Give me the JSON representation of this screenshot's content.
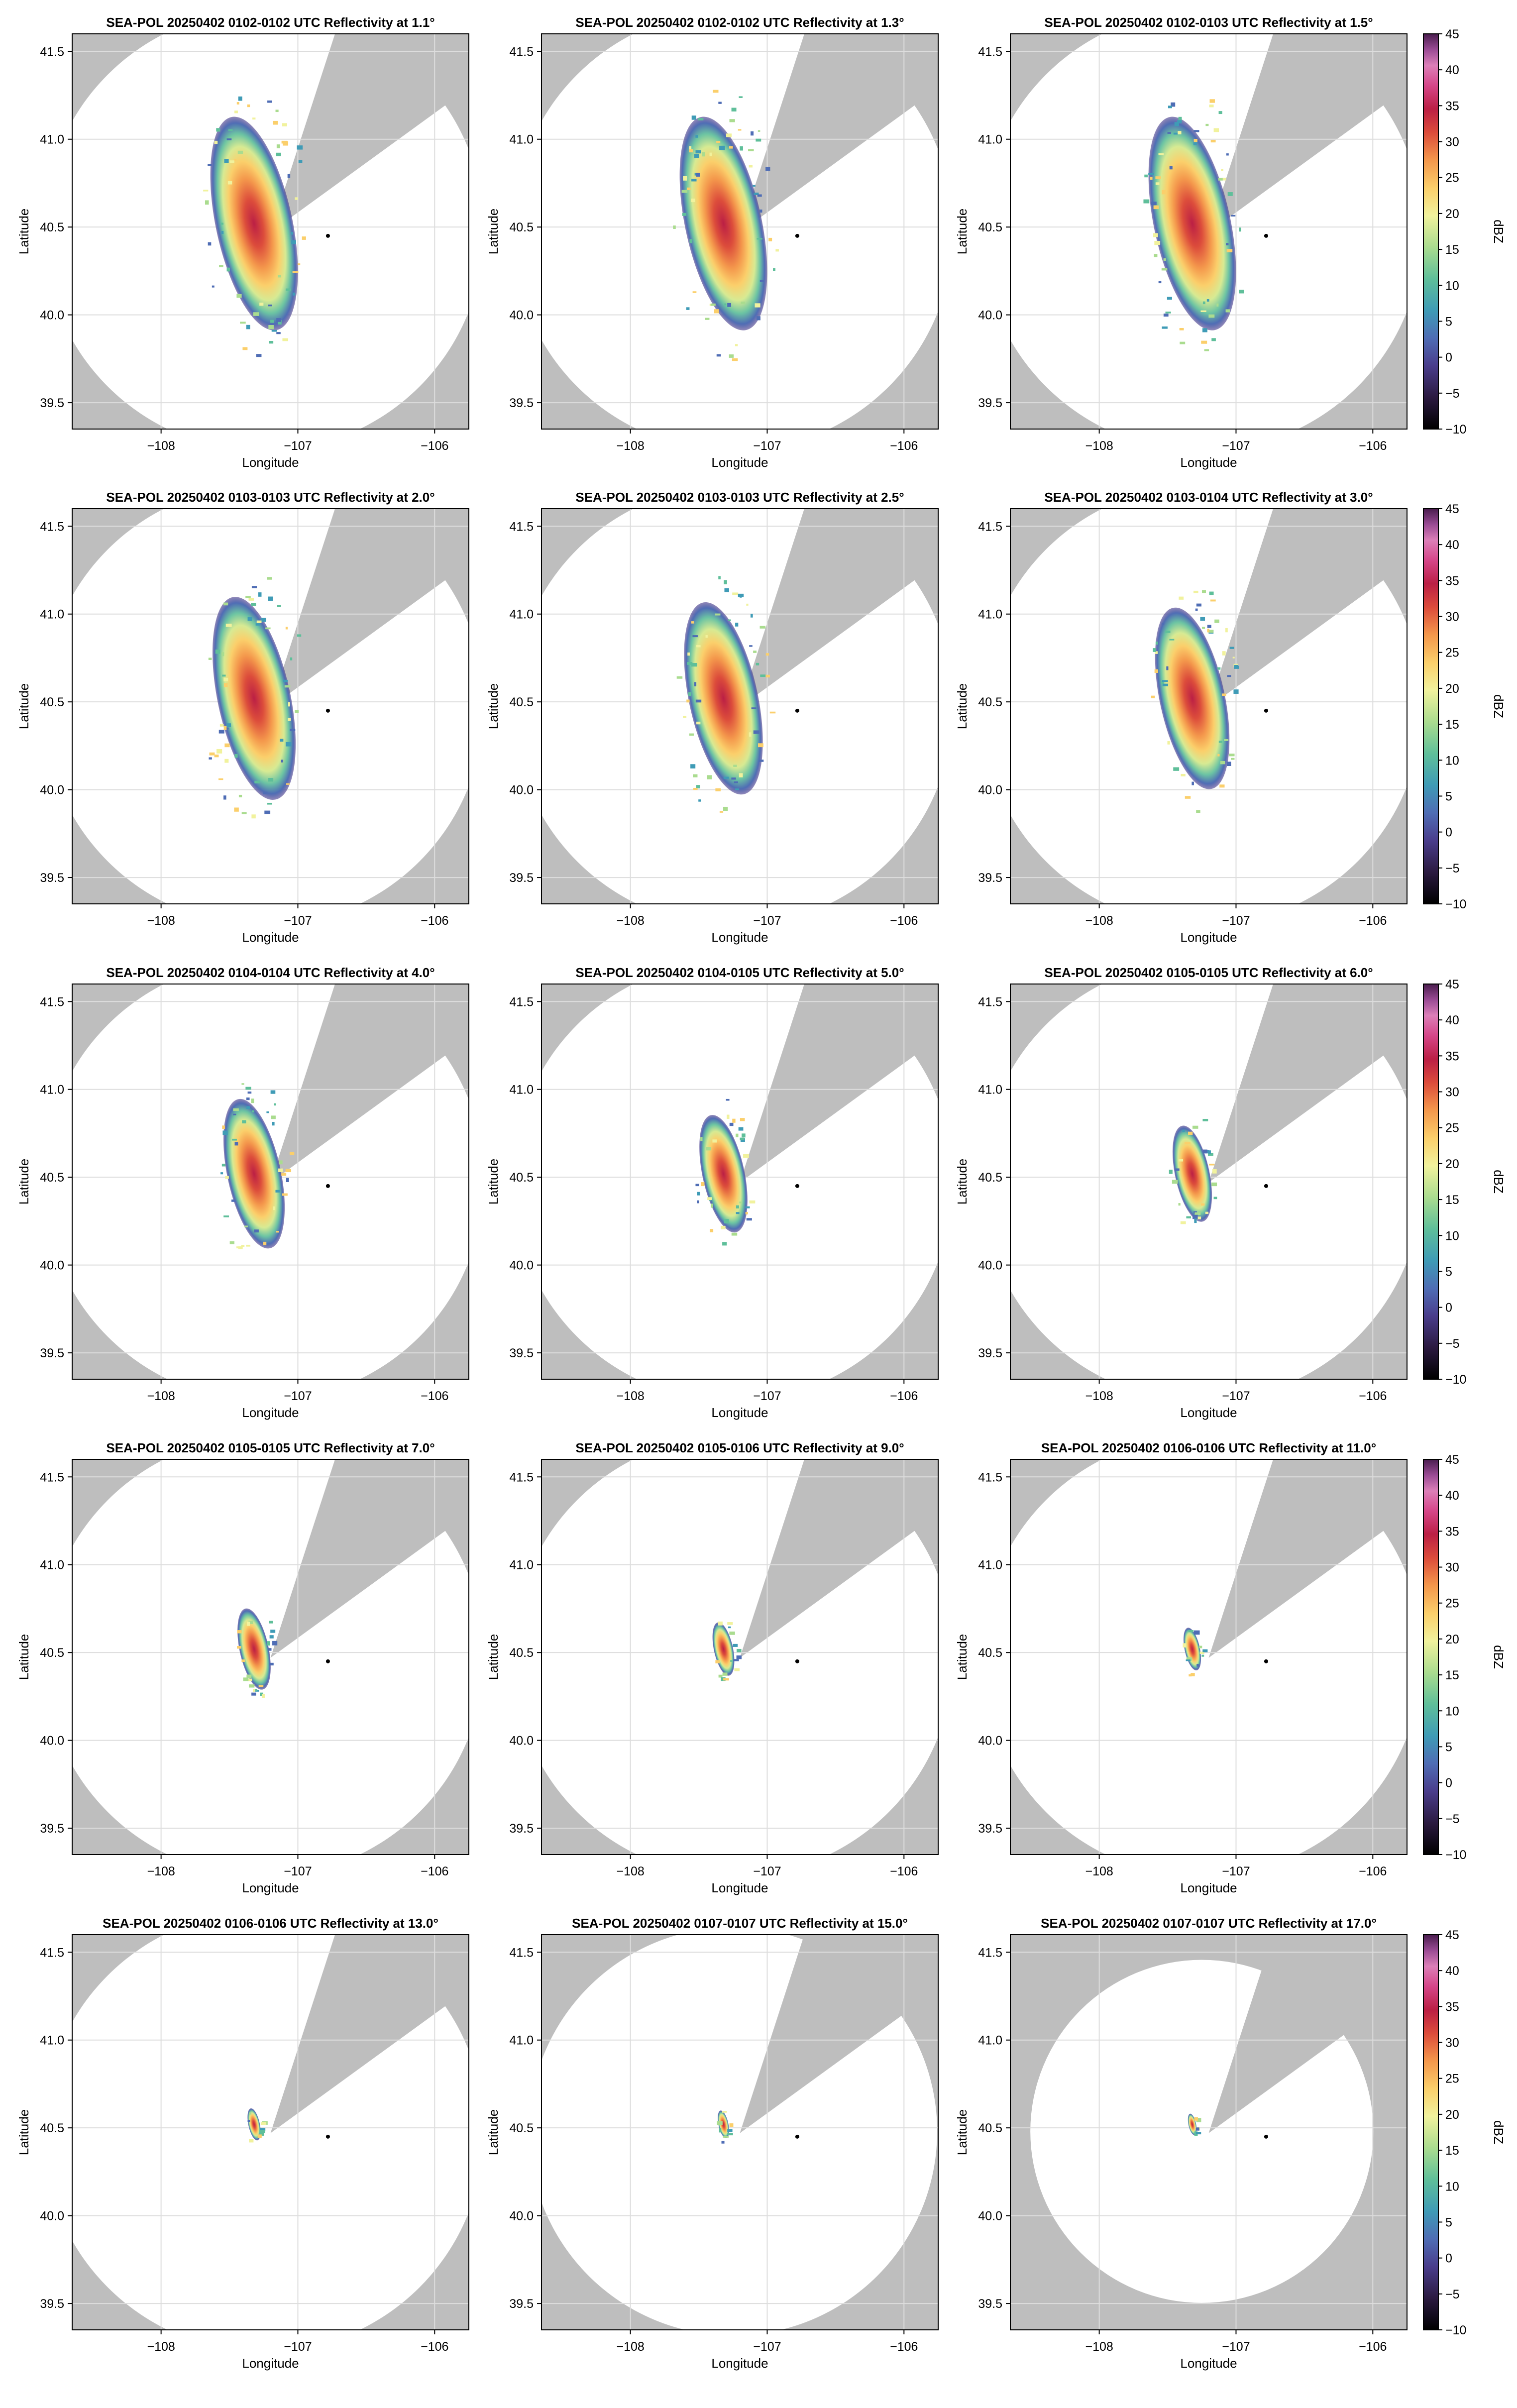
{
  "figure": {
    "xlabel": "Longitude",
    "ylabel": "Latitude",
    "colorbar_label": "dBZ",
    "colorbar_ticks": [
      45,
      40,
      35,
      30,
      25,
      20,
      15,
      10,
      5,
      0,
      -5,
      -10
    ],
    "colors": {
      "background_gray": "#bebebe",
      "coverage_white": "#ffffff",
      "grid": "#dddddd",
      "radar_marker": "#000000"
    }
  },
  "chart_data": [
    {
      "type": "heatmap",
      "title": "SEA-POL 20250402 0102-0102 UTC Reflectivity at 1.1°",
      "elevation_deg": 1.1,
      "xlabel": "Longitude",
      "ylabel": "Latitude",
      "xlim": [
        -108.65,
        -105.75
      ],
      "ylim": [
        39.35,
        41.6
      ],
      "xticks": [
        -108,
        -107,
        -106
      ],
      "xtick_labels": [
        "−108",
        "−107",
        "−106"
      ],
      "yticks": [
        39.5,
        40.0,
        40.5,
        41.0,
        41.5
      ],
      "ytick_labels": [
        "39.5",
        "40.0",
        "40.5",
        "41.0",
        "41.5"
      ],
      "radar_site": [
        -106.78,
        40.45
      ],
      "max_range_deg": 1.35,
      "echo_extent_deg": 1.0,
      "zmin": -10,
      "zmax": 45
    },
    {
      "type": "heatmap",
      "title": "SEA-POL 20250402 0102-0102 UTC Reflectivity at 1.3°",
      "elevation_deg": 1.3,
      "xlabel": "Longitude",
      "ylabel": "Latitude",
      "xlim": [
        -108.65,
        -105.75
      ],
      "ylim": [
        39.35,
        41.6
      ],
      "xticks": [
        -108,
        -107,
        -106
      ],
      "xtick_labels": [
        "−108",
        "−107",
        "−106"
      ],
      "yticks": [
        39.5,
        40.0,
        40.5,
        41.0,
        41.5
      ],
      "ytick_labels": [
        "39.5",
        "40.0",
        "40.5",
        "41.0",
        "41.5"
      ],
      "radar_site": [
        -106.78,
        40.45
      ],
      "max_range_deg": 1.35,
      "echo_extent_deg": 1.0,
      "zmin": -10,
      "zmax": 45
    },
    {
      "type": "heatmap",
      "title": "SEA-POL 20250402 0102-0103 UTC Reflectivity at 1.5°",
      "elevation_deg": 1.5,
      "xlabel": "Longitude",
      "ylabel": "Latitude",
      "xlim": [
        -108.65,
        -105.75
      ],
      "ylim": [
        39.35,
        41.6
      ],
      "xticks": [
        -108,
        -107,
        -106
      ],
      "xtick_labels": [
        "−108",
        "−107",
        "−106"
      ],
      "yticks": [
        39.5,
        40.0,
        40.5,
        41.0,
        41.5
      ],
      "ytick_labels": [
        "39.5",
        "40.0",
        "40.5",
        "41.0",
        "41.5"
      ],
      "radar_site": [
        -106.78,
        40.45
      ],
      "max_range_deg": 1.35,
      "echo_extent_deg": 1.0,
      "zmin": -10,
      "zmax": 45
    },
    {
      "type": "heatmap",
      "title": "SEA-POL 20250402 0103-0103 UTC Reflectivity at 2.0°",
      "elevation_deg": 2.0,
      "xlabel": "Longitude",
      "ylabel": "Latitude",
      "xlim": [
        -108.65,
        -105.75
      ],
      "ylim": [
        39.35,
        41.6
      ],
      "xticks": [
        -108,
        -107,
        -106
      ],
      "xtick_labels": [
        "−108",
        "−107",
        "−106"
      ],
      "yticks": [
        39.5,
        40.0,
        40.5,
        41.0,
        41.5
      ],
      "ytick_labels": [
        "39.5",
        "40.0",
        "40.5",
        "41.0",
        "41.5"
      ],
      "radar_site": [
        -106.78,
        40.45
      ],
      "max_range_deg": 1.35,
      "echo_extent_deg": 0.95,
      "zmin": -10,
      "zmax": 45
    },
    {
      "type": "heatmap",
      "title": "SEA-POL 20250402 0103-0103 UTC Reflectivity at 2.5°",
      "elevation_deg": 2.5,
      "xlabel": "Longitude",
      "ylabel": "Latitude",
      "xlim": [
        -108.65,
        -105.75
      ],
      "ylim": [
        39.35,
        41.6
      ],
      "xticks": [
        -108,
        -107,
        -106
      ],
      "xtick_labels": [
        "−108",
        "−107",
        "−106"
      ],
      "yticks": [
        39.5,
        40.0,
        40.5,
        41.0,
        41.5
      ],
      "ytick_labels": [
        "39.5",
        "40.0",
        "40.5",
        "41.0",
        "41.5"
      ],
      "radar_site": [
        -106.78,
        40.45
      ],
      "max_range_deg": 1.35,
      "echo_extent_deg": 0.9,
      "zmin": -10,
      "zmax": 45
    },
    {
      "type": "heatmap",
      "title": "SEA-POL 20250402 0103-0104 UTC Reflectivity at 3.0°",
      "elevation_deg": 3.0,
      "xlabel": "Longitude",
      "ylabel": "Latitude",
      "xlim": [
        -108.65,
        -105.75
      ],
      "ylim": [
        39.35,
        41.6
      ],
      "xticks": [
        -108,
        -107,
        -106
      ],
      "xtick_labels": [
        "−108",
        "−107",
        "−106"
      ],
      "yticks": [
        39.5,
        40.0,
        40.5,
        41.0,
        41.5
      ],
      "ytick_labels": [
        "39.5",
        "40.0",
        "40.5",
        "41.0",
        "41.5"
      ],
      "radar_site": [
        -106.78,
        40.45
      ],
      "max_range_deg": 1.35,
      "echo_extent_deg": 0.85,
      "zmin": -10,
      "zmax": 45
    },
    {
      "type": "heatmap",
      "title": "SEA-POL 20250402 0104-0104 UTC Reflectivity at 4.0°",
      "elevation_deg": 4.0,
      "xlabel": "Longitude",
      "ylabel": "Latitude",
      "xlim": [
        -108.65,
        -105.75
      ],
      "ylim": [
        39.35,
        41.6
      ],
      "xticks": [
        -108,
        -107,
        -106
      ],
      "xtick_labels": [
        "−108",
        "−107",
        "−106"
      ],
      "yticks": [
        39.5,
        40.0,
        40.5,
        41.0,
        41.5
      ],
      "ytick_labels": [
        "39.5",
        "40.0",
        "40.5",
        "41.0",
        "41.5"
      ],
      "radar_site": [
        -106.78,
        40.45
      ],
      "max_range_deg": 1.35,
      "echo_extent_deg": 0.7,
      "zmin": -10,
      "zmax": 45
    },
    {
      "type": "heatmap",
      "title": "SEA-POL 20250402 0104-0105 UTC Reflectivity at 5.0°",
      "elevation_deg": 5.0,
      "xlabel": "Longitude",
      "ylabel": "Latitude",
      "xlim": [
        -108.65,
        -105.75
      ],
      "ylim": [
        39.35,
        41.6
      ],
      "xticks": [
        -108,
        -107,
        -106
      ],
      "xtick_labels": [
        "−108",
        "−107",
        "−106"
      ],
      "yticks": [
        39.5,
        40.0,
        40.5,
        41.0,
        41.5
      ],
      "ytick_labels": [
        "39.5",
        "40.0",
        "40.5",
        "41.0",
        "41.5"
      ],
      "radar_site": [
        -106.78,
        40.45
      ],
      "max_range_deg": 1.35,
      "echo_extent_deg": 0.55,
      "zmin": -10,
      "zmax": 45
    },
    {
      "type": "heatmap",
      "title": "SEA-POL 20250402 0105-0105 UTC Reflectivity at 6.0°",
      "elevation_deg": 6.0,
      "xlabel": "Longitude",
      "ylabel": "Latitude",
      "xlim": [
        -108.65,
        -105.75
      ],
      "ylim": [
        39.35,
        41.6
      ],
      "xticks": [
        -108,
        -107,
        -106
      ],
      "xtick_labels": [
        "−108",
        "−107",
        "−106"
      ],
      "yticks": [
        39.5,
        40.0,
        40.5,
        41.0,
        41.5
      ],
      "ytick_labels": [
        "39.5",
        "40.0",
        "40.5",
        "41.0",
        "41.5"
      ],
      "radar_site": [
        -106.78,
        40.45
      ],
      "max_range_deg": 1.35,
      "echo_extent_deg": 0.45,
      "zmin": -10,
      "zmax": 45
    },
    {
      "type": "heatmap",
      "title": "SEA-POL 20250402 0105-0105 UTC Reflectivity at 7.0°",
      "elevation_deg": 7.0,
      "xlabel": "Longitude",
      "ylabel": "Latitude",
      "xlim": [
        -108.65,
        -105.75
      ],
      "ylim": [
        39.35,
        41.6
      ],
      "xticks": [
        -108,
        -107,
        -106
      ],
      "xtick_labels": [
        "−108",
        "−107",
        "−106"
      ],
      "yticks": [
        39.5,
        40.0,
        40.5,
        41.0,
        41.5
      ],
      "ytick_labels": [
        "39.5",
        "40.0",
        "40.5",
        "41.0",
        "41.5"
      ],
      "radar_site": [
        -106.78,
        40.45
      ],
      "max_range_deg": 1.35,
      "echo_extent_deg": 0.38,
      "zmin": -10,
      "zmax": 45
    },
    {
      "type": "heatmap",
      "title": "SEA-POL 20250402 0105-0106 UTC Reflectivity at 9.0°",
      "elevation_deg": 9.0,
      "xlabel": "Longitude",
      "ylabel": "Latitude",
      "xlim": [
        -108.65,
        -105.75
      ],
      "ylim": [
        39.35,
        41.6
      ],
      "xticks": [
        -108,
        -107,
        -106
      ],
      "xtick_labels": [
        "−108",
        "−107",
        "−106"
      ],
      "yticks": [
        39.5,
        40.0,
        40.5,
        41.0,
        41.5
      ],
      "ytick_labels": [
        "39.5",
        "40.0",
        "40.5",
        "41.0",
        "41.5"
      ],
      "radar_site": [
        -106.78,
        40.45
      ],
      "max_range_deg": 1.35,
      "echo_extent_deg": 0.25,
      "zmin": -10,
      "zmax": 45
    },
    {
      "type": "heatmap",
      "title": "SEA-POL 20250402 0106-0106 UTC Reflectivity at 11.0°",
      "elevation_deg": 11.0,
      "xlabel": "Longitude",
      "ylabel": "Latitude",
      "xlim": [
        -108.65,
        -105.75
      ],
      "ylim": [
        39.35,
        41.6
      ],
      "xticks": [
        -108,
        -107,
        -106
      ],
      "xtick_labels": [
        "−108",
        "−107",
        "−106"
      ],
      "yticks": [
        39.5,
        40.0,
        40.5,
        41.0,
        41.5
      ],
      "ytick_labels": [
        "39.5",
        "40.0",
        "40.5",
        "41.0",
        "41.5"
      ],
      "radar_site": [
        -106.78,
        40.45
      ],
      "max_range_deg": 1.35,
      "echo_extent_deg": 0.2,
      "zmin": -10,
      "zmax": 45
    },
    {
      "type": "heatmap",
      "title": "SEA-POL 20250402 0106-0106 UTC Reflectivity at 13.0°",
      "elevation_deg": 13.0,
      "xlabel": "Longitude",
      "ylabel": "Latitude",
      "xlim": [
        -108.65,
        -105.75
      ],
      "ylim": [
        39.35,
        41.6
      ],
      "xticks": [
        -108,
        -107,
        -106
      ],
      "xtick_labels": [
        "−108",
        "−107",
        "−106"
      ],
      "yticks": [
        39.5,
        40.0,
        40.5,
        41.0,
        41.5
      ],
      "ytick_labels": [
        "39.5",
        "40.0",
        "40.5",
        "41.0",
        "41.5"
      ],
      "radar_site": [
        -106.78,
        40.45
      ],
      "max_range_deg": 1.35,
      "echo_extent_deg": 0.15,
      "zmin": -10,
      "zmax": 45
    },
    {
      "type": "heatmap",
      "title": "SEA-POL 20250402 0107-0107 UTC Reflectivity at 15.0°",
      "elevation_deg": 15.0,
      "xlabel": "Longitude",
      "ylabel": "Latitude",
      "xlim": [
        -108.65,
        -105.75
      ],
      "ylim": [
        39.35,
        41.6
      ],
      "xticks": [
        -108,
        -107,
        -106
      ],
      "xtick_labels": [
        "−108",
        "−107",
        "−106"
      ],
      "yticks": [
        39.5,
        40.0,
        40.5,
        41.0,
        41.5
      ],
      "ytick_labels": [
        "39.5",
        "40.0",
        "40.5",
        "41.0",
        "41.5"
      ],
      "radar_site": [
        -106.78,
        40.45
      ],
      "max_range_deg": 1.25,
      "echo_extent_deg": 0.13,
      "zmin": -10,
      "zmax": 45
    },
    {
      "type": "heatmap",
      "title": "SEA-POL 20250402 0107-0107 UTC Reflectivity at 17.0°",
      "elevation_deg": 17.0,
      "xlabel": "Longitude",
      "ylabel": "Latitude",
      "xlim": [
        -108.65,
        -105.75
      ],
      "ylim": [
        39.35,
        41.6
      ],
      "xticks": [
        -108,
        -107,
        -106
      ],
      "xtick_labels": [
        "−108",
        "−107",
        "−106"
      ],
      "yticks": [
        39.5,
        40.0,
        40.5,
        41.0,
        41.5
      ],
      "ytick_labels": [
        "39.5",
        "40.0",
        "40.5",
        "41.0",
        "41.5"
      ],
      "radar_site": [
        -106.78,
        40.45
      ],
      "max_range_deg": 1.05,
      "echo_extent_deg": 0.1,
      "zmin": -10,
      "zmax": 45
    }
  ]
}
